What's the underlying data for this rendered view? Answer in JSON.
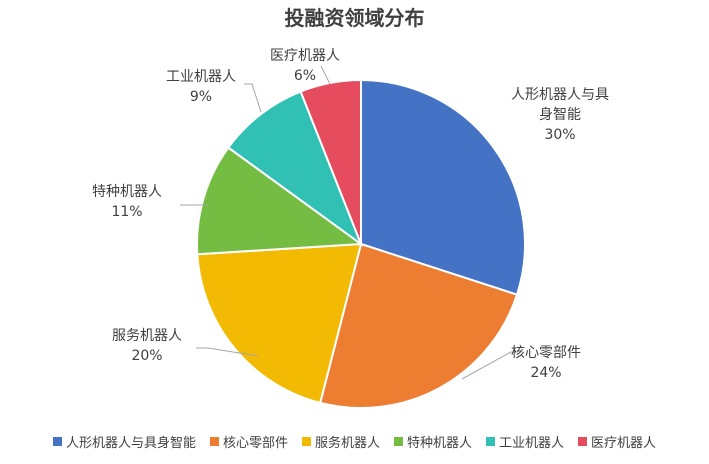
{
  "chart_data": {
    "type": "pie",
    "title": "投融资领域分布",
    "slices": [
      {
        "name": "人形机器人与具身智能",
        "label_lines": [
          "人形机器人与具",
          "身智能"
        ],
        "value": 30,
        "value_label": "30%",
        "color": "#4472C4"
      },
      {
        "name": "核心零部件",
        "label_lines": [
          "核心零部件"
        ],
        "value": 24,
        "value_label": "24%",
        "color": "#ED7D31"
      },
      {
        "name": "服务机器人",
        "label_lines": [
          "服务机器人"
        ],
        "value": 20,
        "value_label": "20%",
        "color": "#F2BA02"
      },
      {
        "name": "特种机器人",
        "label_lines": [
          "特种机器人"
        ],
        "value": 11,
        "value_label": "11%",
        "color": "#75BD42"
      },
      {
        "name": "工业机器人",
        "label_lines": [
          "工业机器人"
        ],
        "value": 9,
        "value_label": "9%",
        "color": "#30C0B4"
      },
      {
        "name": "医疗机器人",
        "label_lines": [
          "医疗机器人"
        ],
        "value": 6,
        "value_label": "6%",
        "color": "#E54C5E"
      }
    ],
    "legend_position": "bottom"
  }
}
